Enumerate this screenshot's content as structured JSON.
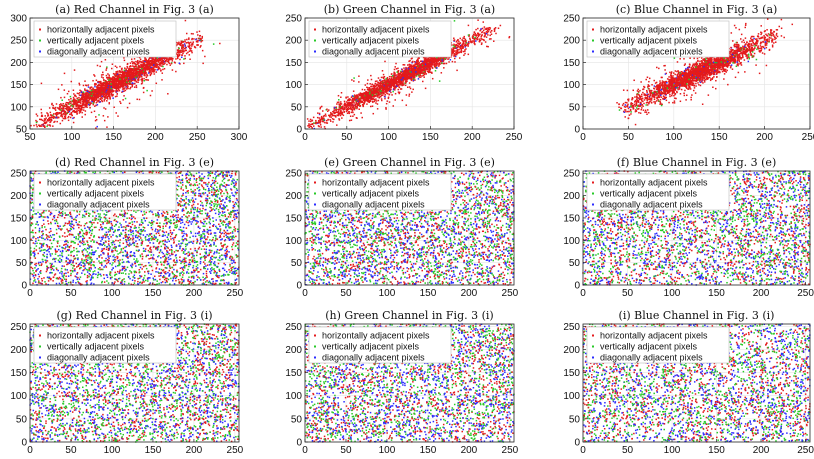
{
  "figure": {
    "background": "#ffffff",
    "grid": true
  },
  "series_colors": {
    "horizontal": "#e41a1c",
    "vertical": "#27c927",
    "diagonal": "#2b2bff"
  },
  "chart_data": [
    {
      "id": "a",
      "type": "scatter",
      "title": "(a) Red Channel in Fig. 3 (a)",
      "xlim": [
        50,
        300
      ],
      "ylim": [
        50,
        300
      ],
      "xticks": [
        50,
        100,
        150,
        200,
        250,
        300
      ],
      "yticks": [
        50,
        100,
        150,
        200,
        250,
        300
      ],
      "legend": {
        "position": "top-left",
        "entries": [
          "horizontally adjacent pixels",
          "vertically adjacent pixels",
          "diagonally adjacent pixels"
        ]
      },
      "distribution": "correlated",
      "value_range": [
        60,
        255
      ],
      "spread": 10,
      "visible_series": "horizontal",
      "series": [
        {
          "name": "horizontally adjacent pixels",
          "color": "#e41a1c"
        },
        {
          "name": "vertically adjacent pixels",
          "color": "#27c927"
        },
        {
          "name": "diagonally adjacent pixels",
          "color": "#2b2bff"
        }
      ]
    },
    {
      "id": "b",
      "type": "scatter",
      "title": "(b) Green Channel in Fig. 3 (a)",
      "xlim": [
        0,
        250
      ],
      "ylim": [
        0,
        250
      ],
      "xticks": [
        0,
        50,
        100,
        150,
        200,
        250
      ],
      "yticks": [
        0,
        50,
        100,
        150,
        200,
        250
      ],
      "legend": {
        "position": "top-left",
        "entries": [
          "horizontally adjacent pixels",
          "vertically adjacent pixels",
          "diagonally adjacent pixels"
        ]
      },
      "distribution": "correlated",
      "value_range": [
        5,
        225
      ],
      "spread": 8,
      "visible_series": "horizontal",
      "series": [
        {
          "name": "horizontally adjacent pixels",
          "color": "#e41a1c"
        },
        {
          "name": "vertically adjacent pixels",
          "color": "#27c927"
        },
        {
          "name": "diagonally adjacent pixels",
          "color": "#2b2bff"
        }
      ]
    },
    {
      "id": "c",
      "type": "scatter",
      "title": "(c) Blue Channel in Fig. 3 (a)",
      "xlim": [
        0,
        250
      ],
      "ylim": [
        0,
        250
      ],
      "xticks": [
        0,
        50,
        100,
        150,
        200,
        250
      ],
      "yticks": [
        0,
        50,
        100,
        150,
        200,
        250
      ],
      "legend": {
        "position": "top-left",
        "entries": [
          "horizontally adjacent pixels",
          "vertically adjacent pixels",
          "diagonally adjacent pixels"
        ]
      },
      "distribution": "correlated",
      "value_range": [
        45,
        215
      ],
      "spread": 10,
      "visible_series": "horizontal",
      "series": [
        {
          "name": "horizontally adjacent pixels",
          "color": "#e41a1c"
        },
        {
          "name": "vertically adjacent pixels",
          "color": "#27c927"
        },
        {
          "name": "diagonally adjacent pixels",
          "color": "#2b2bff"
        }
      ]
    },
    {
      "id": "d",
      "type": "scatter",
      "title": "(d) Red Channel in Fig. 3 (e)",
      "xlim": [
        0,
        255
      ],
      "ylim": [
        0,
        255
      ],
      "xticks": [
        0,
        50,
        100,
        150,
        200,
        250
      ],
      "yticks": [
        0,
        50,
        100,
        150,
        200,
        250
      ],
      "legend": {
        "position": "top-left",
        "entries": [
          "horizontally adjacent pixels",
          "vertically adjacent pixels",
          "diagonally adjacent pixels"
        ]
      },
      "distribution": "uniform",
      "value_range": [
        0,
        255
      ],
      "visible_series": "all",
      "series": [
        {
          "name": "horizontally adjacent pixels",
          "color": "#e41a1c"
        },
        {
          "name": "vertically adjacent pixels",
          "color": "#27c927"
        },
        {
          "name": "diagonally adjacent pixels",
          "color": "#2b2bff"
        }
      ]
    },
    {
      "id": "e",
      "type": "scatter",
      "title": "(e) Green Channel in Fig. 3 (e)",
      "xlim": [
        0,
        255
      ],
      "ylim": [
        0,
        255
      ],
      "xticks": [
        0,
        50,
        100,
        150,
        200,
        250
      ],
      "yticks": [
        0,
        50,
        100,
        150,
        200,
        250
      ],
      "legend": {
        "position": "top-left",
        "entries": [
          "horizontally adjacent pixels",
          "vertically adjacent pixels",
          "diagonally adjacent pixels"
        ]
      },
      "distribution": "uniform",
      "value_range": [
        0,
        255
      ],
      "visible_series": "all",
      "series": [
        {
          "name": "horizontally adjacent pixels",
          "color": "#e41a1c"
        },
        {
          "name": "vertically adjacent pixels",
          "color": "#27c927"
        },
        {
          "name": "diagonally adjacent pixels",
          "color": "#2b2bff"
        }
      ]
    },
    {
      "id": "f",
      "type": "scatter",
      "title": "(f) Blue Channel in Fig. 3 (e)",
      "xlim": [
        0,
        255
      ],
      "ylim": [
        0,
        255
      ],
      "xticks": [
        0,
        50,
        100,
        150,
        200,
        250
      ],
      "yticks": [
        0,
        50,
        100,
        150,
        200,
        250
      ],
      "legend": {
        "position": "top-left",
        "entries": [
          "horizontally adjacent pixels",
          "vertically adjacent pixels",
          "diagonally adjacent pixels"
        ]
      },
      "distribution": "uniform",
      "value_range": [
        0,
        255
      ],
      "visible_series": "all",
      "series": [
        {
          "name": "horizontally adjacent pixels",
          "color": "#e41a1c"
        },
        {
          "name": "vertically adjacent pixels",
          "color": "#27c927"
        },
        {
          "name": "diagonally adjacent pixels",
          "color": "#2b2bff"
        }
      ]
    },
    {
      "id": "g",
      "type": "scatter",
      "title": "(g) Red Channel in Fig. 3 (i)",
      "xlim": [
        0,
        255
      ],
      "ylim": [
        0,
        255
      ],
      "xticks": [
        0,
        50,
        100,
        150,
        200,
        250
      ],
      "yticks": [
        0,
        50,
        100,
        150,
        200,
        250
      ],
      "legend": {
        "position": "top-left",
        "entries": [
          "horizontally adjacent pixels",
          "vertically adjacent pixels",
          "diagonally adjacent pixels"
        ]
      },
      "distribution": "uniform",
      "value_range": [
        0,
        255
      ],
      "visible_series": "all",
      "series": [
        {
          "name": "horizontally adjacent pixels",
          "color": "#e41a1c"
        },
        {
          "name": "vertically adjacent pixels",
          "color": "#27c927"
        },
        {
          "name": "diagonally adjacent pixels",
          "color": "#2b2bff"
        }
      ]
    },
    {
      "id": "h",
      "type": "scatter",
      "title": "(h) Green Channel in Fig. 3 (i)",
      "xlim": [
        0,
        255
      ],
      "ylim": [
        0,
        255
      ],
      "xticks": [
        0,
        50,
        100,
        150,
        200,
        250
      ],
      "yticks": [
        0,
        50,
        100,
        150,
        200,
        250
      ],
      "legend": {
        "position": "top-left",
        "entries": [
          "horizontally adjacent pixels",
          "vertically adjacent pixels",
          "diagonally adjacent pixels"
        ]
      },
      "distribution": "uniform",
      "value_range": [
        0,
        255
      ],
      "visible_series": "all",
      "series": [
        {
          "name": "horizontally adjacent pixels",
          "color": "#e41a1c"
        },
        {
          "name": "vertically adjacent pixels",
          "color": "#27c927"
        },
        {
          "name": "diagonally adjacent pixels",
          "color": "#2b2bff"
        }
      ]
    },
    {
      "id": "i",
      "type": "scatter",
      "title": "(i) Blue Channel in Fig. 3 (i)",
      "xlim": [
        0,
        255
      ],
      "ylim": [
        0,
        255
      ],
      "xticks": [
        0,
        50,
        100,
        150,
        200,
        250
      ],
      "yticks": [
        0,
        50,
        100,
        150,
        200,
        250
      ],
      "legend": {
        "position": "top-left",
        "entries": [
          "horizontally adjacent pixels",
          "vertically adjacent pixels",
          "diagonally adjacent pixels"
        ]
      },
      "distribution": "uniform",
      "value_range": [
        0,
        255
      ],
      "visible_series": "all",
      "series": [
        {
          "name": "horizontally adjacent pixels",
          "color": "#e41a1c"
        },
        {
          "name": "vertically adjacent pixels",
          "color": "#27c927"
        },
        {
          "name": "diagonally adjacent pixels",
          "color": "#2b2bff"
        }
      ]
    }
  ]
}
